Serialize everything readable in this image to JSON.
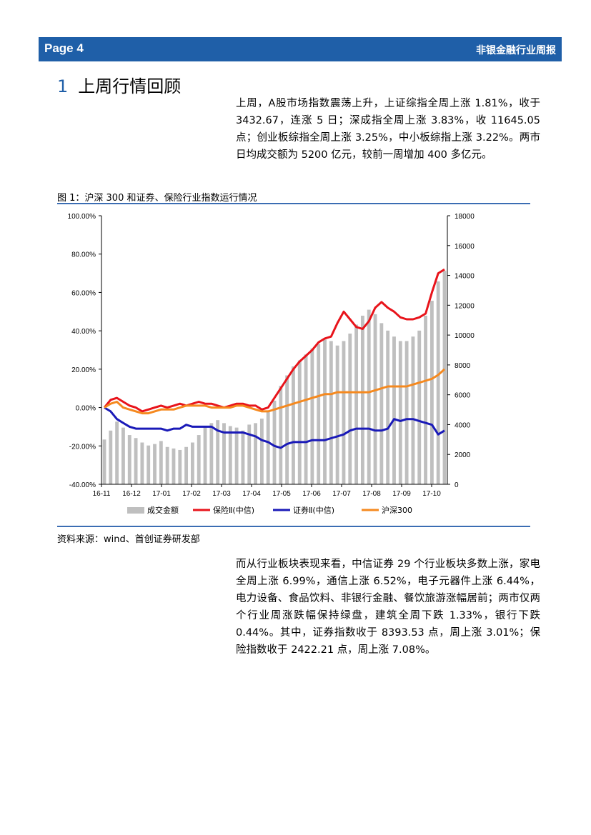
{
  "header": {
    "page": "Page 4",
    "report": "非银金融行业周报"
  },
  "section": {
    "number": "1",
    "title": "上周行情回顾"
  },
  "para1": "上周，A股市场指数震荡上升，上证综指全周上涨 1.81%，收于 3432.67，连涨 5 日；深成指全周上涨 3.83%，收 11645.05 点；创业板综指全周上涨 3.25%，中小板综指上涨 3.22%。两市日均成交额为 5200 亿元，较前一周增加 400 多亿元。",
  "figure": {
    "title": "图 1：沪深 300 和证券、保险行业指数运行情况",
    "source": "资料来源：wind、首创证券研发部"
  },
  "para2": "而从行业板块表现来看，中信证券 29 个行业板块多数上涨，家电全周上涨 6.99%，通信上涨 6.52%，电子元器件上涨 6.44%，电力设备、食品饮料、非银行金融、餐饮旅游涨幅居前；两市仅两个行业周涨跌幅保持绿盘，建筑全周下跌 1.33%，银行下跌 0.44%。其中，证券指数收于 8393.53 点，周上涨 3.01%；保险指数收于 2422.21 点，周上涨 7.08%。",
  "chart_data": {
    "type": "line",
    "title": "",
    "x_ticks": [
      "16-11",
      "16-12",
      "17-01",
      "17-02",
      "17-03",
      "17-04",
      "17-05",
      "17-06",
      "17-07",
      "17-08",
      "17-09",
      "17-10"
    ],
    "y_left_ticks": [
      "100.00%",
      "80.00%",
      "60.00%",
      "40.00%",
      "20.00%",
      "0.00%",
      "-20.00%",
      "-40.00%"
    ],
    "y_left_range": [
      -40,
      100
    ],
    "y_right_ticks": [
      "18000",
      "16000",
      "14000",
      "12000",
      "10000",
      "8000",
      "6000",
      "4000",
      "2000",
      "0"
    ],
    "y_right_range": [
      0,
      18000
    ],
    "legend_position": "bottom",
    "colors": {
      "volume": "#bfbfbf",
      "insurance": "#e8141b",
      "securities": "#1a1ab8",
      "hs300": "#f5891f"
    },
    "series": [
      {
        "name": "成交金额",
        "axis": "right",
        "kind": "bar",
        "values": [
          3000,
          3600,
          4200,
          3800,
          3300,
          3100,
          2800,
          2600,
          2700,
          2900,
          2500,
          2400,
          2300,
          2500,
          2800,
          3300,
          3900,
          4100,
          4300,
          4100,
          3900,
          3800,
          3600,
          4000,
          4100,
          4400,
          4900,
          5600,
          6600,
          7300,
          7900,
          8300,
          8700,
          9100,
          9400,
          9700,
          9600,
          9300,
          9600,
          10100,
          10700,
          11300,
          11700,
          11400,
          10800,
          10300,
          9900,
          9600,
          9600,
          9900,
          10300,
          11300,
          12300,
          13600,
          14300
        ]
      },
      {
        "name": "保险Ⅱ(中信)",
        "axis": "left",
        "kind": "line",
        "values": [
          0,
          4,
          5,
          3,
          1,
          0,
          -2,
          -1,
          0,
          1,
          0,
          1,
          2,
          1,
          2,
          3,
          2,
          2,
          1,
          0,
          1,
          2,
          2,
          1,
          1,
          -1,
          0,
          5,
          10,
          15,
          20,
          24,
          27,
          30,
          34,
          36,
          37,
          44,
          50,
          46,
          42,
          41,
          45,
          52,
          55,
          52,
          50,
          47,
          46,
          46,
          47,
          49,
          60,
          70,
          72
        ]
      },
      {
        "name": "证券Ⅱ(中信)",
        "axis": "left",
        "kind": "line",
        "values": [
          0,
          -2,
          -6,
          -8,
          -10,
          -11,
          -11,
          -11,
          -11,
          -11,
          -12,
          -11,
          -11,
          -9,
          -10,
          -10,
          -10,
          -10,
          -12,
          -13,
          -13,
          -13,
          -13,
          -14,
          -15,
          -17,
          -18,
          -20,
          -21,
          -19,
          -18,
          -18,
          -18,
          -17,
          -17,
          -17,
          -16,
          -15,
          -14,
          -12,
          -11,
          -11,
          -11,
          -12,
          -12,
          -11,
          -6,
          -7,
          -6,
          -6,
          -7,
          -8,
          -9,
          -14,
          -12
        ]
      },
      {
        "name": "沪深300",
        "axis": "left",
        "kind": "line",
        "values": [
          0,
          2,
          3,
          0,
          -1,
          -2,
          -3,
          -3,
          -2,
          -1,
          -1,
          -1,
          0,
          1,
          1,
          1,
          1,
          0,
          0,
          0,
          0,
          1,
          1,
          0,
          -1,
          -2,
          -2,
          -1,
          0,
          1,
          2,
          3,
          4,
          5,
          6,
          7,
          7,
          8,
          8,
          8,
          8,
          8,
          8,
          9,
          10,
          11,
          11,
          11,
          11,
          12,
          13,
          14,
          15,
          17,
          20
        ]
      }
    ]
  }
}
